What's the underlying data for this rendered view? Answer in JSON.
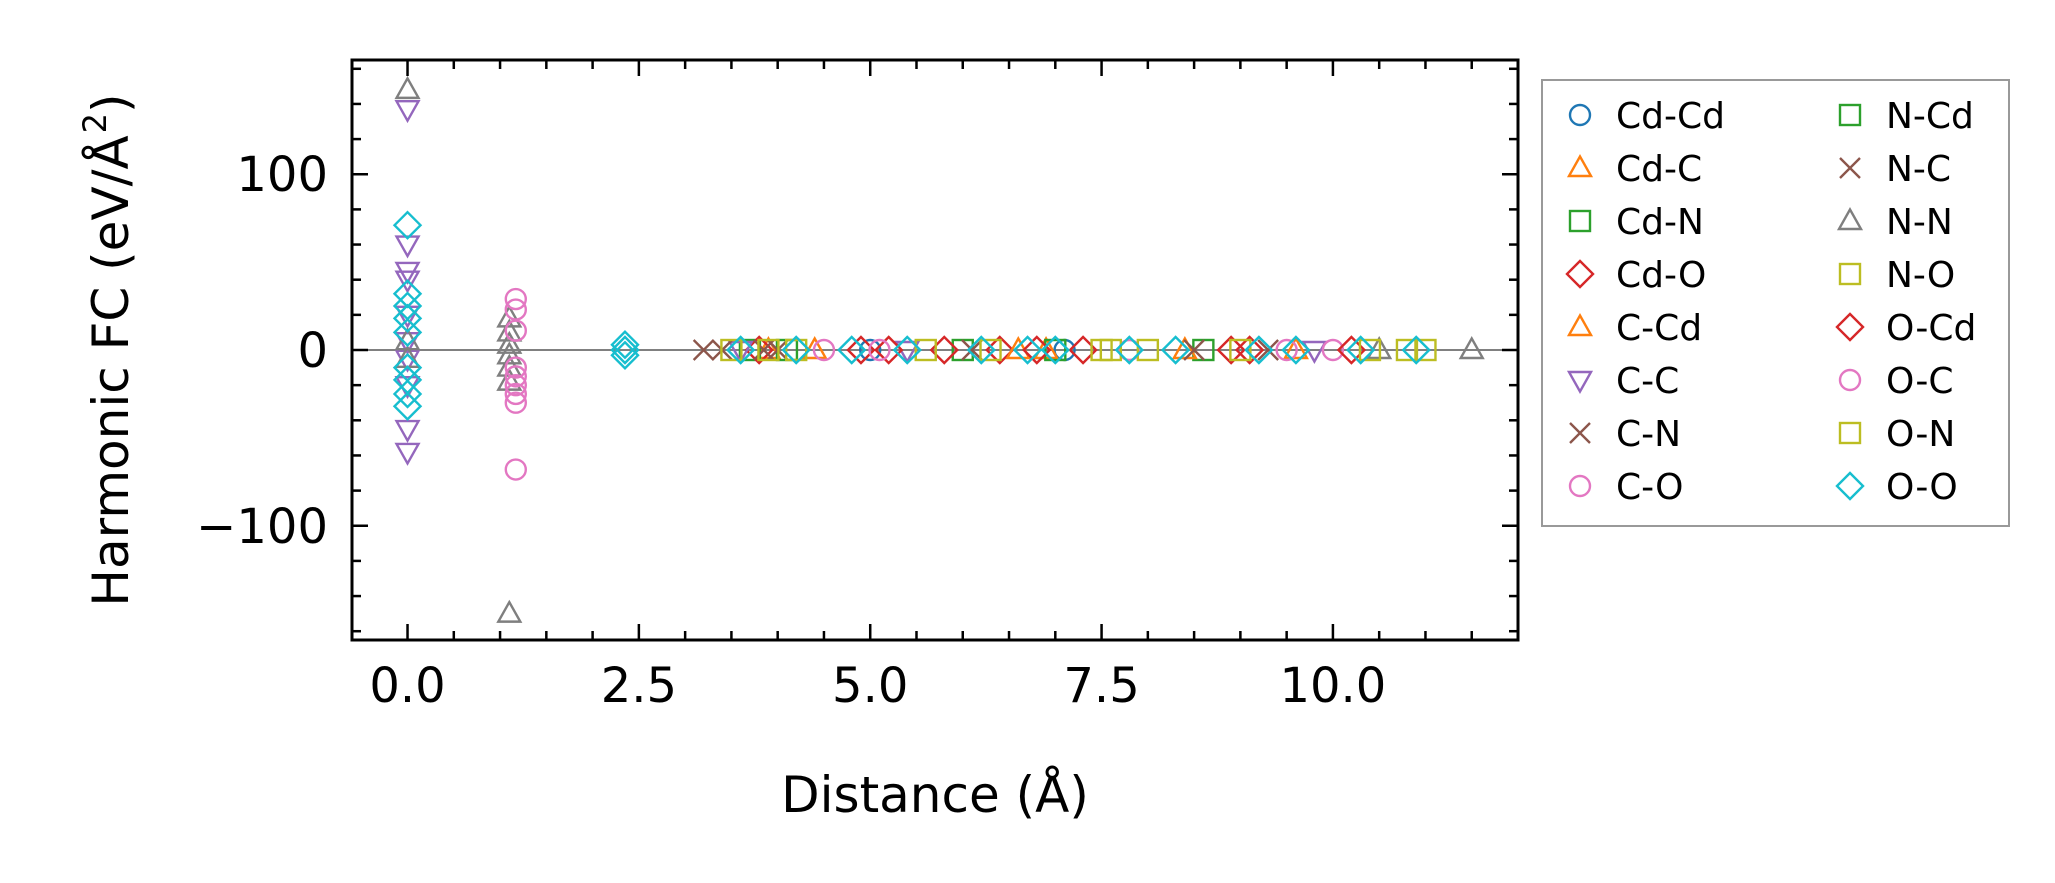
{
  "chart_data": {
    "type": "scatter",
    "xlabel": "Distance (Å)",
    "ylabel_main": "Harmonic FC (eV/Å",
    "ylabel_sup": "2",
    "ylabel_close": ")",
    "xlim": [
      -0.6,
      12.0
    ],
    "ylim": [
      -165,
      165
    ],
    "xticks": [
      0.0,
      2.5,
      5.0,
      7.5,
      10.0
    ],
    "xtick_labels": [
      "0.0",
      "2.5",
      "5.0",
      "7.5",
      "10.0"
    ],
    "yticks": [
      -100,
      0,
      100
    ],
    "ytick_labels": [
      "−100",
      "0",
      "100"
    ],
    "grid": false,
    "legend_position": "outside-right",
    "zero_line": 0,
    "series": [
      {
        "name": "Cd-Cd",
        "marker": "circle",
        "color": "#1f77b4",
        "points": [
          [
            5.0,
            0
          ],
          [
            7.1,
            0
          ]
        ]
      },
      {
        "name": "Cd-C",
        "marker": "triangle-up",
        "color": "#ff7f0e",
        "points": [
          [
            3.9,
            0
          ],
          [
            6.9,
            0
          ],
          [
            9.6,
            0
          ]
        ]
      },
      {
        "name": "Cd-N",
        "marker": "square",
        "color": "#2ca02c",
        "points": [
          [
            3.7,
            0
          ],
          [
            6.0,
            0
          ],
          [
            8.6,
            0
          ]
        ]
      },
      {
        "name": "Cd-O",
        "marker": "diamond",
        "color": "#d62728",
        "points": [
          [
            3.8,
            0
          ],
          [
            4.9,
            0
          ],
          [
            5.8,
            0
          ],
          [
            6.4,
            0
          ],
          [
            7.3,
            0
          ],
          [
            8.9,
            0
          ],
          [
            9.1,
            0
          ]
        ]
      },
      {
        "name": "C-Cd",
        "marker": "triangle-up",
        "color": "#ff7f0e",
        "points": [
          [
            4.4,
            0
          ],
          [
            6.6,
            0
          ],
          [
            8.4,
            0
          ]
        ]
      },
      {
        "name": "C-C",
        "marker": "triangle-down",
        "color": "#9467bd",
        "points": [
          [
            0,
            137
          ],
          [
            0,
            60
          ],
          [
            0,
            45
          ],
          [
            0,
            40
          ],
          [
            0,
            20
          ],
          [
            0,
            5
          ],
          [
            0,
            -5
          ],
          [
            0,
            -20
          ],
          [
            0,
            -45
          ],
          [
            0,
            -58
          ],
          [
            3.6,
            0
          ],
          [
            5.4,
            0
          ],
          [
            9.8,
            0
          ]
        ]
      },
      {
        "name": "C-N",
        "marker": "x",
        "color": "#8c564b",
        "points": [
          [
            3.2,
            0
          ],
          [
            3.85,
            0
          ],
          [
            6.1,
            0
          ],
          [
            8.5,
            0
          ]
        ]
      },
      {
        "name": "C-O",
        "marker": "circle",
        "color": "#e377c2",
        "points": [
          [
            4.5,
            0
          ],
          [
            7.8,
            0
          ],
          [
            10.0,
            0
          ]
        ]
      },
      {
        "name": "N-Cd",
        "marker": "square",
        "color": "#2ca02c",
        "points": [
          [
            4.1,
            0
          ],
          [
            7.0,
            0
          ]
        ]
      },
      {
        "name": "N-C",
        "marker": "x",
        "color": "#8c564b",
        "points": [
          [
            3.4,
            0
          ],
          [
            4.0,
            0
          ],
          [
            9.3,
            0
          ]
        ]
      },
      {
        "name": "N-N",
        "marker": "triangle-up",
        "color": "#7f7f7f",
        "points": [
          [
            0,
            148
          ],
          [
            0,
            5
          ],
          [
            0,
            -5
          ],
          [
            1.1,
            18
          ],
          [
            1.1,
            10
          ],
          [
            1.1,
            3
          ],
          [
            1.1,
            -3
          ],
          [
            1.1,
            -10
          ],
          [
            1.1,
            -18
          ],
          [
            1.1,
            -150
          ],
          [
            10.5,
            0
          ],
          [
            11.5,
            0
          ]
        ]
      },
      {
        "name": "N-O",
        "marker": "square",
        "color": "#bcbd22",
        "points": [
          [
            3.5,
            0
          ],
          [
            4.2,
            0
          ],
          [
            5.6,
            0
          ],
          [
            7.5,
            0
          ],
          [
            9.0,
            0
          ],
          [
            10.8,
            0
          ]
        ]
      },
      {
        "name": "O-Cd",
        "marker": "diamond",
        "color": "#d62728",
        "points": [
          [
            5.2,
            0
          ],
          [
            6.8,
            0
          ],
          [
            10.2,
            0
          ]
        ]
      },
      {
        "name": "O-C",
        "marker": "circle",
        "color": "#e377c2",
        "points": [
          [
            1.17,
            29
          ],
          [
            1.17,
            23
          ],
          [
            1.17,
            11
          ],
          [
            1.17,
            -10
          ],
          [
            1.17,
            -15
          ],
          [
            1.17,
            -20
          ],
          [
            1.17,
            -25
          ],
          [
            1.17,
            -30
          ],
          [
            1.17,
            -68
          ],
          [
            5.1,
            0
          ],
          [
            9.5,
            0
          ]
        ]
      },
      {
        "name": "O-N",
        "marker": "square",
        "color": "#bcbd22",
        "points": [
          [
            3.9,
            0
          ],
          [
            6.3,
            0
          ],
          [
            7.6,
            0
          ],
          [
            8.0,
            0
          ],
          [
            10.4,
            0
          ],
          [
            11.0,
            0
          ]
        ]
      },
      {
        "name": "O-O",
        "marker": "diamond",
        "color": "#17becf",
        "points": [
          [
            0,
            71
          ],
          [
            0,
            32
          ],
          [
            0,
            25
          ],
          [
            0,
            18
          ],
          [
            0,
            10
          ],
          [
            0,
            -10
          ],
          [
            0,
            -17
          ],
          [
            0,
            -25
          ],
          [
            0,
            -32
          ],
          [
            2.35,
            3
          ],
          [
            2.35,
            0
          ],
          [
            2.35,
            -3
          ],
          [
            3.6,
            0
          ],
          [
            4.2,
            0
          ],
          [
            4.8,
            0
          ],
          [
            5.4,
            0
          ],
          [
            6.2,
            0
          ],
          [
            6.7,
            0
          ],
          [
            7.0,
            0
          ],
          [
            7.8,
            0
          ],
          [
            8.3,
            0
          ],
          [
            9.2,
            0
          ],
          [
            9.6,
            0
          ],
          [
            10.3,
            0
          ],
          [
            10.9,
            0
          ]
        ]
      }
    ]
  }
}
